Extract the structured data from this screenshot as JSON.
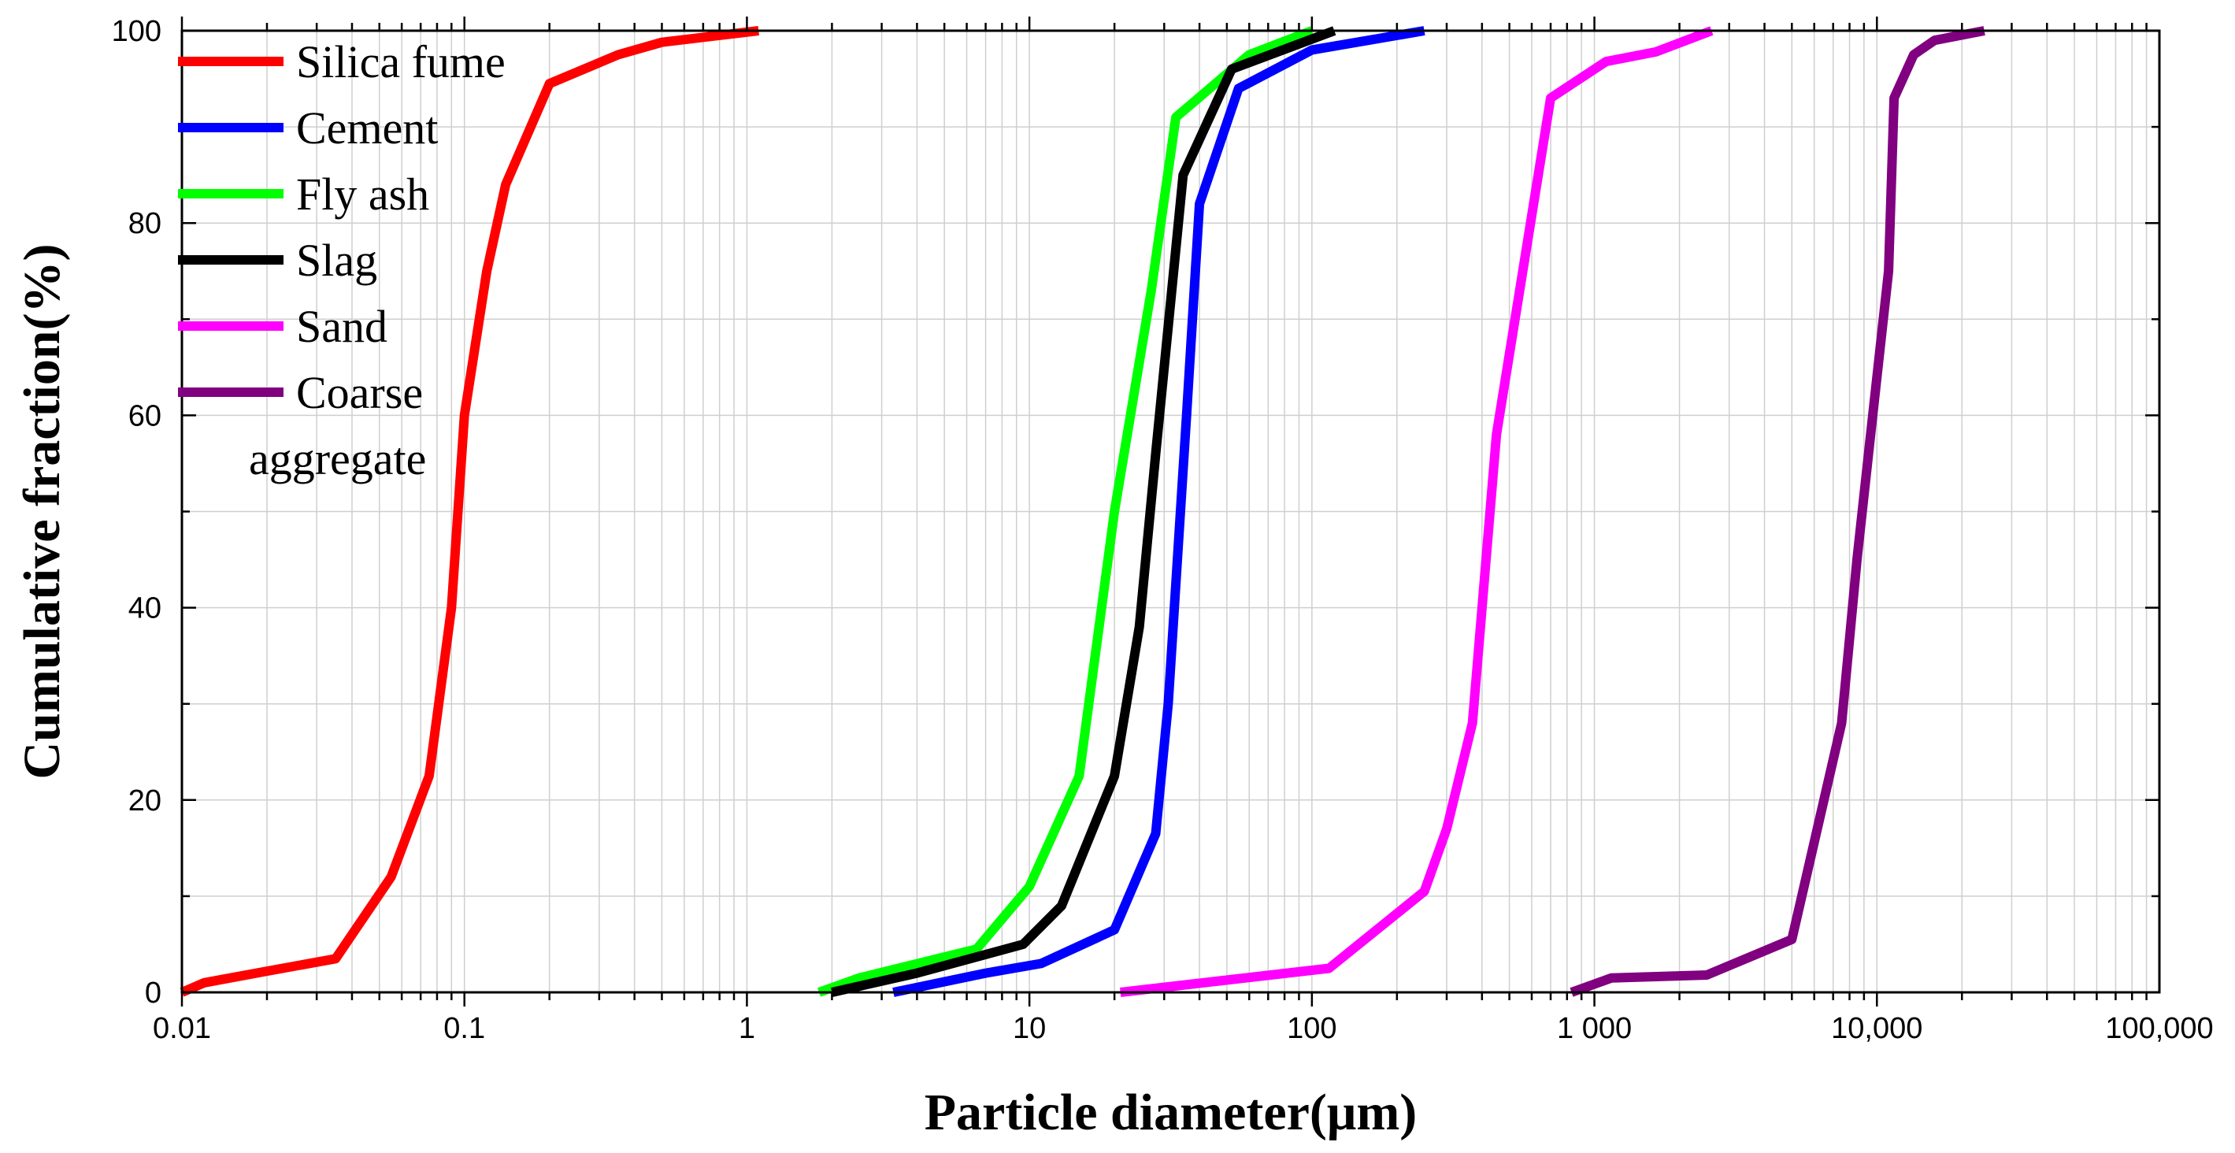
{
  "chart_data": {
    "type": "line",
    "title": "",
    "xlabel": "Particle diameter(μm)",
    "ylabel": "Cumulative fraction(%)",
    "xscale": "log",
    "xlim": [
      0.01,
      100000
    ],
    "ylim": [
      0,
      100
    ],
    "grid": true,
    "legend_position": "top-left",
    "x_ticks": [
      0.01,
      0.1,
      1,
      10,
      100,
      1000,
      10000,
      100000
    ],
    "x_tick_labels": [
      "0.01",
      "0.1",
      "1",
      "10",
      "100",
      "1 000",
      "10,000",
      "100,000"
    ],
    "y_ticks": [
      0,
      20,
      40,
      60,
      80,
      100
    ],
    "y_tick_labels": [
      "0",
      "20",
      "40",
      "60",
      "80",
      "100"
    ],
    "series": [
      {
        "name": "Silica fume",
        "color": "#ff0000",
        "points": [
          [
            0.01,
            0
          ],
          [
            0.012,
            1
          ],
          [
            0.02,
            2.2
          ],
          [
            0.035,
            3.5
          ],
          [
            0.055,
            12
          ],
          [
            0.075,
            22.5
          ],
          [
            0.09,
            40
          ],
          [
            0.1,
            60
          ],
          [
            0.12,
            75
          ],
          [
            0.14,
            84
          ],
          [
            0.2,
            94.5
          ],
          [
            0.35,
            97.5
          ],
          [
            0.5,
            98.8
          ],
          [
            1.1,
            100
          ]
        ]
      },
      {
        "name": "Cement",
        "color": "#0000ff",
        "points": [
          [
            3.3,
            0
          ],
          [
            7,
            2
          ],
          [
            11,
            3
          ],
          [
            20,
            6.5
          ],
          [
            28,
            16.5
          ],
          [
            31,
            30
          ],
          [
            36,
            60
          ],
          [
            40,
            82
          ],
          [
            55,
            94
          ],
          [
            100,
            98
          ],
          [
            250,
            100
          ]
        ]
      },
      {
        "name": "Fly ash",
        "color": "#00ff00",
        "points": [
          [
            1.8,
            0
          ],
          [
            2.5,
            1.5
          ],
          [
            6.5,
            4.5
          ],
          [
            10,
            11
          ],
          [
            15,
            22.5
          ],
          [
            20,
            50
          ],
          [
            27,
            73
          ],
          [
            33,
            91
          ],
          [
            60,
            97.5
          ],
          [
            100,
            100
          ]
        ]
      },
      {
        "name": "Slag",
        "color": "#000000",
        "points": [
          [
            2,
            0
          ],
          [
            4,
            2
          ],
          [
            9.5,
            5
          ],
          [
            13,
            9
          ],
          [
            20,
            22.5
          ],
          [
            24.5,
            38
          ],
          [
            28,
            56
          ],
          [
            35,
            85
          ],
          [
            52,
            96
          ],
          [
            120,
            100
          ]
        ]
      },
      {
        "name": "Sand",
        "color": "#ff00ff",
        "points": [
          [
            21,
            0
          ],
          [
            115,
            2.5
          ],
          [
            250,
            10.5
          ],
          [
            300,
            17
          ],
          [
            370,
            28
          ],
          [
            450,
            58
          ],
          [
            700,
            93
          ],
          [
            1100,
            96.8
          ],
          [
            1650,
            97.8
          ],
          [
            2600,
            100
          ]
        ]
      },
      {
        "name": "Coarse aggregate",
        "legend_lines": [
          "Coarse",
          "aggregate"
        ],
        "color": "#800080",
        "points": [
          [
            830,
            0
          ],
          [
            1150,
            1.5
          ],
          [
            2500,
            1.8
          ],
          [
            5000,
            5.5
          ],
          [
            7500,
            28
          ],
          [
            8500,
            45
          ],
          [
            9500,
            58
          ],
          [
            11000,
            75
          ],
          [
            11500,
            93
          ],
          [
            13500,
            97.5
          ],
          [
            16000,
            99
          ],
          [
            24000,
            100
          ]
        ]
      }
    ]
  }
}
